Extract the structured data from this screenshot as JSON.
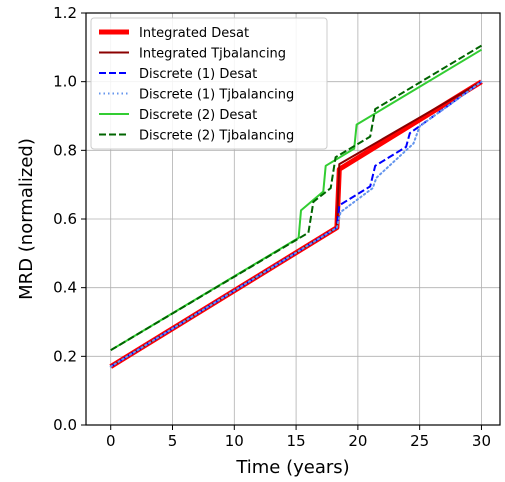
{
  "chart_data": {
    "type": "line",
    "xlabel": "Time (years)",
    "ylabel": "MRD (normalized)",
    "xlim": [
      -2,
      31.5
    ],
    "ylim": [
      0.0,
      1.2
    ],
    "xticks": [
      0,
      5,
      10,
      15,
      20,
      25,
      30
    ],
    "yticks": [
      0.0,
      0.2,
      0.4,
      0.6,
      0.8,
      1.0,
      1.2
    ],
    "xtick_labels": [
      "0",
      "5",
      "10",
      "15",
      "20",
      "25",
      "30"
    ],
    "ytick_labels": [
      "0.0",
      "0.2",
      "0.4",
      "0.6",
      "0.8",
      "1.0",
      "1.2"
    ],
    "grid": true,
    "legend_position": "top-left",
    "series": [
      {
        "name": "Integrated Desat",
        "color": "#ff0000",
        "dash": "solid",
        "width": "thick",
        "x": [
          0,
          18.3,
          18.5,
          30
        ],
        "y": [
          0.17,
          0.575,
          0.745,
          1.0
        ]
      },
      {
        "name": "Integrated Tjbalancing",
        "color": "#8b0000",
        "dash": "solid",
        "width": "normal",
        "x": [
          0,
          18.3,
          18.5,
          30
        ],
        "y": [
          0.17,
          0.575,
          0.76,
          1.0
        ]
      },
      {
        "name": "Discrete (1) Desat",
        "color": "#0000ff",
        "dash": "dashed",
        "width": "normal",
        "x": [
          0,
          18.3,
          18.5,
          21.0,
          21.4,
          23.9,
          24.2,
          30
        ],
        "y": [
          0.17,
          0.575,
          0.64,
          0.695,
          0.755,
          0.81,
          0.85,
          1.0
        ]
      },
      {
        "name": "Discrete (1) Tjbalancing",
        "color": "#6495ed",
        "dash": "dotted",
        "width": "normal",
        "x": [
          0,
          18.3,
          18.6,
          21.2,
          21.5,
          24.5,
          25.0,
          30
        ],
        "y": [
          0.17,
          0.575,
          0.62,
          0.69,
          0.72,
          0.82,
          0.87,
          1.0
        ]
      },
      {
        "name": "Discrete (2) Desat",
        "color": "#32cd32",
        "dash": "solid",
        "width": "normal",
        "x": [
          0,
          15.2,
          15.4,
          17.2,
          17.4,
          19.7,
          19.9,
          30
        ],
        "y": [
          0.218,
          0.545,
          0.625,
          0.68,
          0.755,
          0.805,
          0.875,
          1.093
        ]
      },
      {
        "name": "Discrete (2) Tjbalancing",
        "color": "#006400",
        "dash": "dashed",
        "width": "normal",
        "x": [
          0,
          16.0,
          16.4,
          17.8,
          18.2,
          21.0,
          21.4,
          30
        ],
        "y": [
          0.218,
          0.56,
          0.65,
          0.69,
          0.78,
          0.84,
          0.92,
          1.105
        ]
      }
    ]
  }
}
